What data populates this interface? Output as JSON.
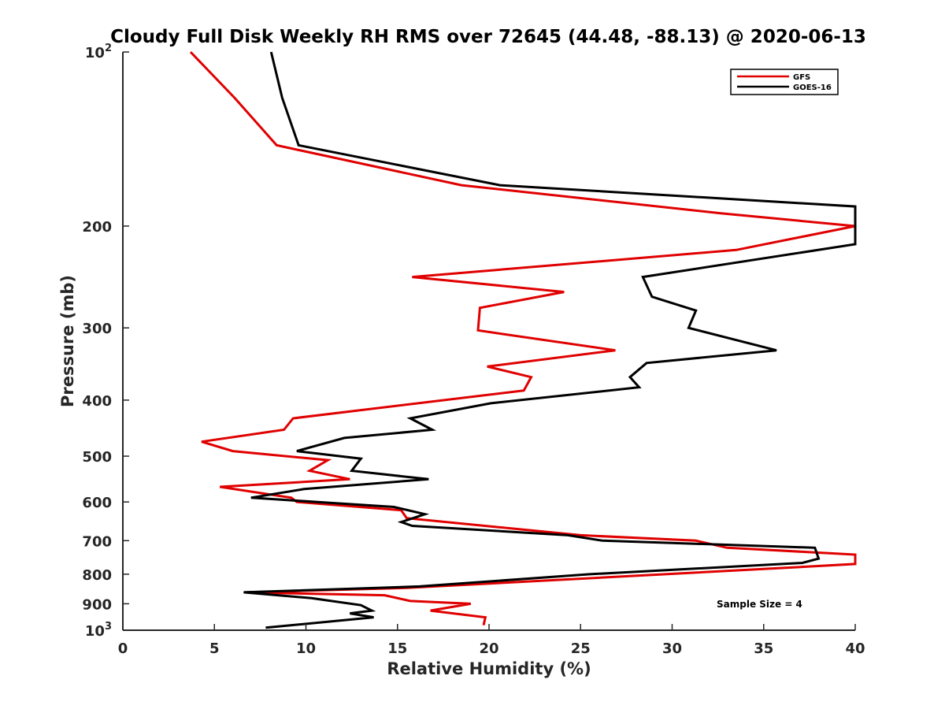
{
  "chart_data": {
    "type": "line",
    "title": "Cloudy Full Disk Weekly RH RMS over 72645 (44.48, -88.13) @ 2020-06-13",
    "xlabel": "Relative Humidity (%)",
    "ylabel": "Pressure (mb)",
    "xlim": [
      0,
      40
    ],
    "ylim": [
      100,
      1000
    ],
    "y_scale": "log",
    "y_reversed": true,
    "x_ticks": [
      "0",
      "5",
      "10",
      "15",
      "20",
      "25",
      "30",
      "35",
      "40"
    ],
    "y_ticks": [
      {
        "value": 100,
        "label": "10",
        "sup": "2"
      },
      {
        "value": 200,
        "label": "200"
      },
      {
        "value": 300,
        "label": "300"
      },
      {
        "value": 400,
        "label": "400"
      },
      {
        "value": 500,
        "label": "500"
      },
      {
        "value": 600,
        "label": "600"
      },
      {
        "value": 700,
        "label": "700"
      },
      {
        "value": 800,
        "label": "800"
      },
      {
        "value": 900,
        "label": "900"
      },
      {
        "value": 1000,
        "label": "10",
        "sup": "3"
      }
    ],
    "legend_position": "top-right",
    "annotation": "Sample Size = 4",
    "series": [
      {
        "name": "GFS",
        "color": "#e00000",
        "points": [
          [
            3.7,
            100
          ],
          [
            6.1,
            120
          ],
          [
            8.4,
            145
          ],
          [
            18.5,
            170
          ],
          [
            32.6,
            190
          ],
          [
            40.0,
            200
          ],
          [
            33.5,
            220
          ],
          [
            15.8,
            245
          ],
          [
            24.1,
            260
          ],
          [
            19.5,
            277
          ],
          [
            19.4,
            303
          ],
          [
            26.9,
            328
          ],
          [
            19.9,
            350
          ],
          [
            22.3,
            365
          ],
          [
            21.9,
            385
          ],
          [
            9.3,
            430
          ],
          [
            8.8,
            450
          ],
          [
            4.3,
            472
          ],
          [
            6.0,
            490
          ],
          [
            11.2,
            508
          ],
          [
            10.2,
            530
          ],
          [
            12.4,
            548
          ],
          [
            5.3,
            565
          ],
          [
            9.2,
            590
          ],
          [
            9.5,
            600
          ],
          [
            15.2,
            620
          ],
          [
            15.5,
            640
          ],
          [
            25.0,
            685
          ],
          [
            31.3,
            700
          ],
          [
            33.0,
            720
          ],
          [
            40.0,
            740
          ],
          [
            40.0,
            768
          ],
          [
            36.2,
            780
          ],
          [
            15.5,
            845
          ],
          [
            6.7,
            860
          ],
          [
            14.3,
            870
          ],
          [
            15.7,
            890
          ],
          [
            19.0,
            900
          ],
          [
            16.8,
            925
          ],
          [
            19.8,
            950
          ],
          [
            19.7,
            980
          ]
        ]
      },
      {
        "name": "GOES-16",
        "color": "#000000",
        "points": [
          [
            8.1,
            100
          ],
          [
            8.7,
            120
          ],
          [
            9.6,
            145
          ],
          [
            20.6,
            170
          ],
          [
            40.0,
            185
          ],
          [
            40.0,
            190
          ],
          [
            40.0,
            215
          ],
          [
            28.4,
            245
          ],
          [
            28.9,
            265
          ],
          [
            31.3,
            280
          ],
          [
            30.9,
            300
          ],
          [
            35.7,
            328
          ],
          [
            28.6,
            345
          ],
          [
            27.7,
            365
          ],
          [
            28.2,
            380
          ],
          [
            20.1,
            405
          ],
          [
            15.7,
            430
          ],
          [
            16.9,
            450
          ],
          [
            12.1,
            465
          ],
          [
            9.5,
            490
          ],
          [
            13.0,
            505
          ],
          [
            12.5,
            530
          ],
          [
            16.7,
            548
          ],
          [
            9.9,
            570
          ],
          [
            7.0,
            590
          ],
          [
            14.8,
            612
          ],
          [
            16.5,
            630
          ],
          [
            15.2,
            650
          ],
          [
            15.8,
            660
          ],
          [
            24.3,
            685
          ],
          [
            26.2,
            700
          ],
          [
            37.8,
            720
          ],
          [
            38.0,
            752
          ],
          [
            37.1,
            765
          ],
          [
            25.5,
            800
          ],
          [
            16.2,
            840
          ],
          [
            6.6,
            860
          ],
          [
            10.3,
            880
          ],
          [
            13.0,
            905
          ],
          [
            13.6,
            925
          ],
          [
            12.4,
            935
          ],
          [
            13.7,
            950
          ],
          [
            7.8,
            990
          ]
        ]
      }
    ]
  }
}
